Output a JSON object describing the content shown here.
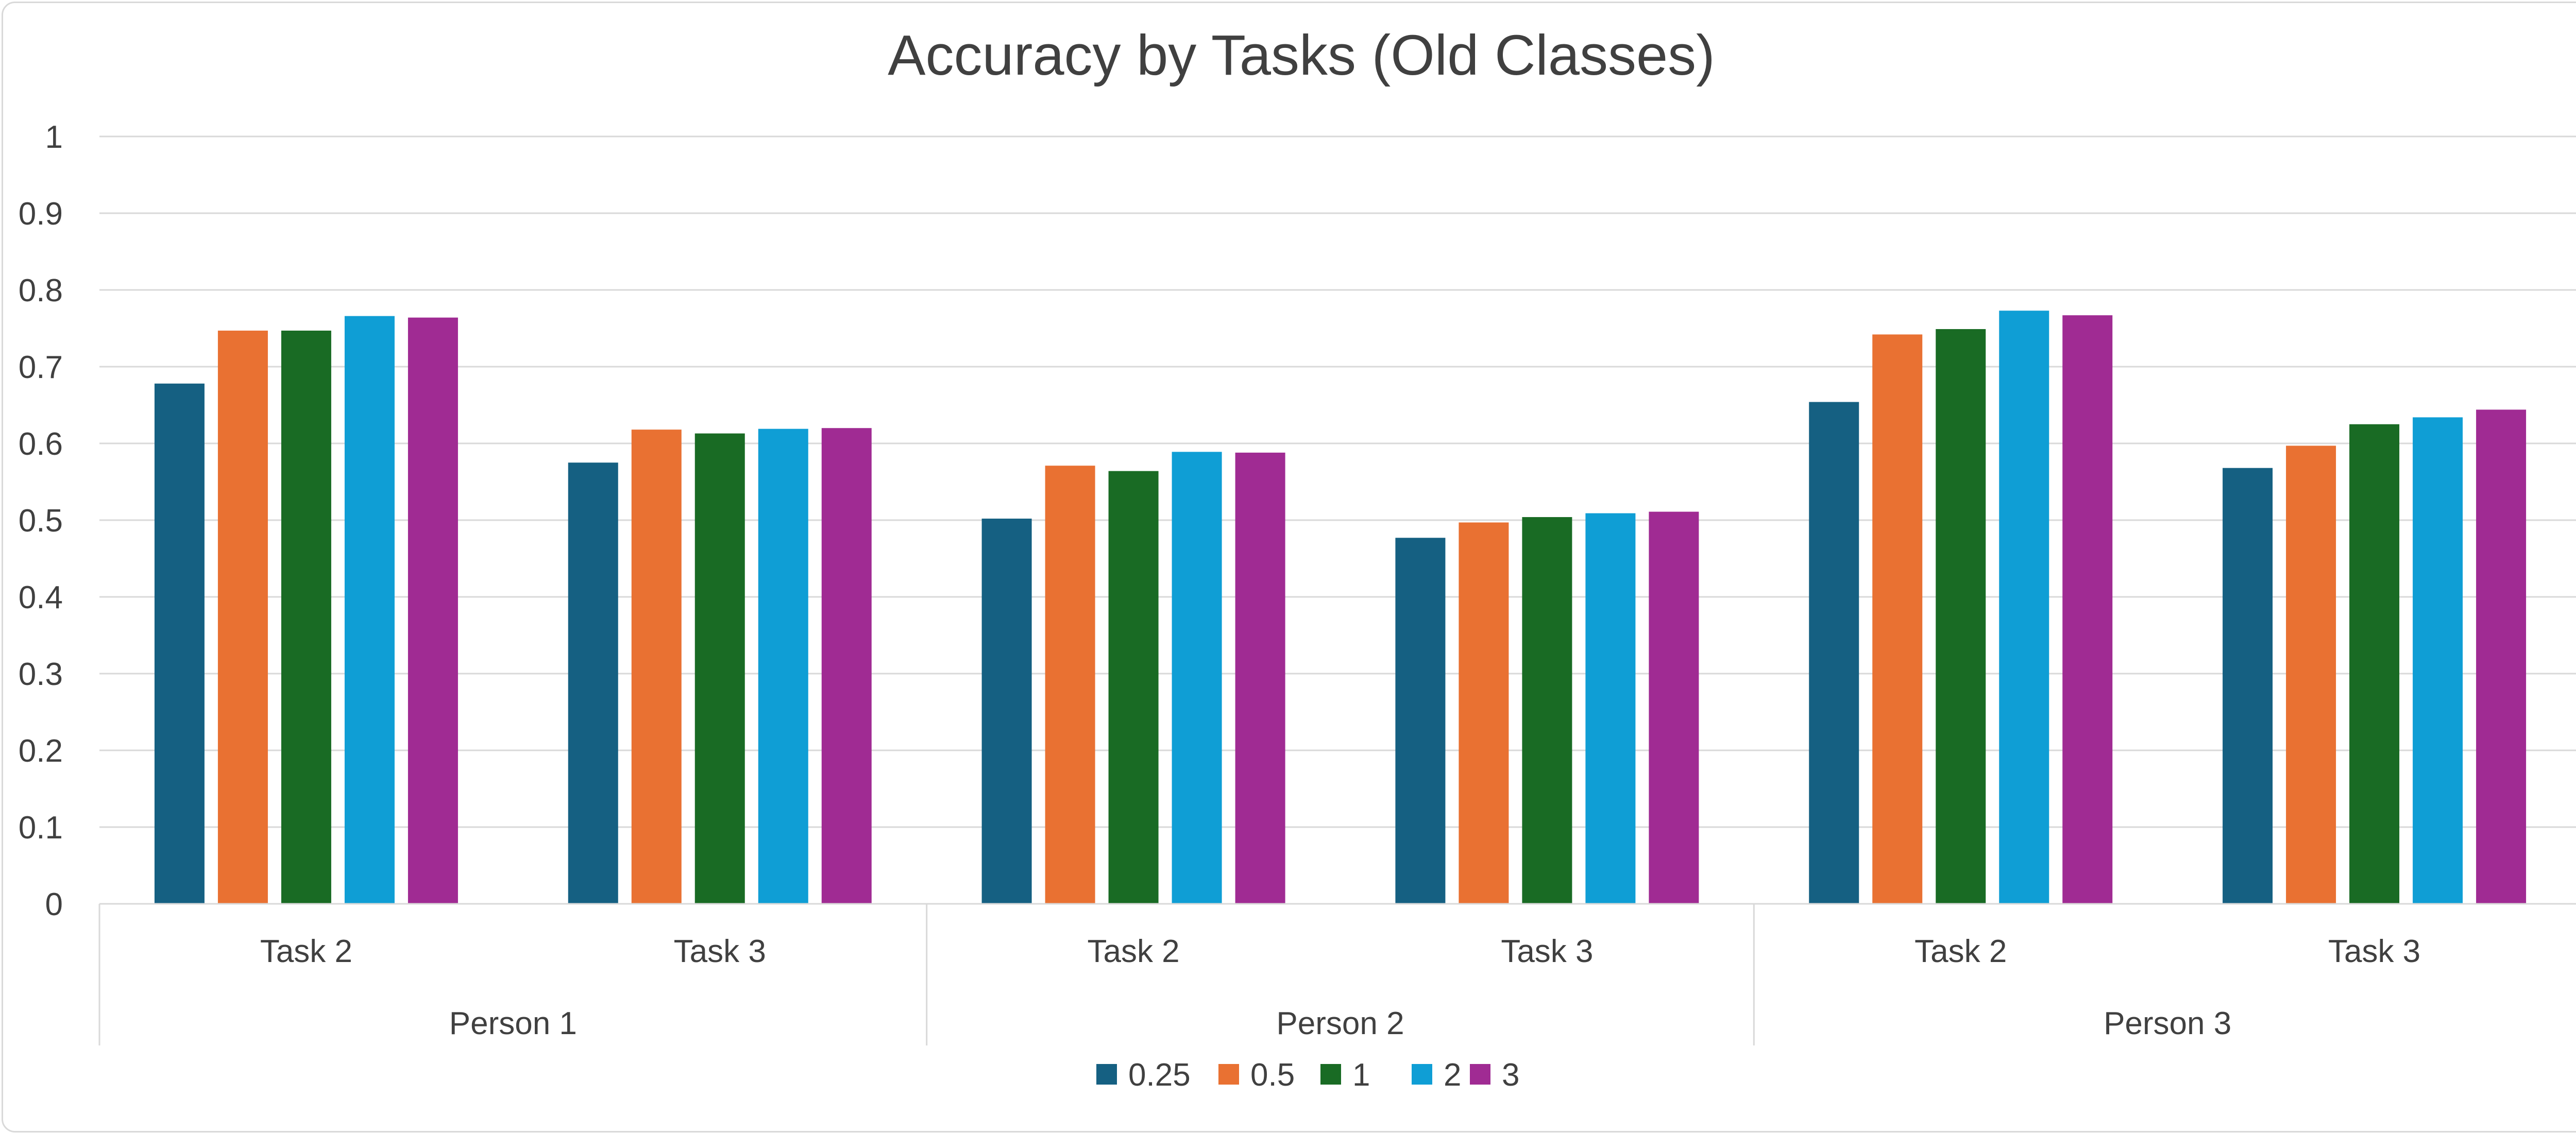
{
  "chart_data": {
    "type": "bar",
    "title": "Accuracy by Tasks (Old Classes)",
    "xlabel": "",
    "ylabel": "",
    "ylim": [
      0,
      1
    ],
    "yticks": [
      "0",
      "0.1",
      "0.2",
      "0.3",
      "0.4",
      "0.5",
      "0.6",
      "0.7",
      "0.8",
      "0.9",
      "1"
    ],
    "grid": true,
    "legend_position": "bottom",
    "groups": [
      "Person 1",
      "Person 2",
      "Person 3"
    ],
    "categories": [
      "Task 2",
      "Task 3",
      "Task 2",
      "Task 3",
      "Task 2",
      "Task 3"
    ],
    "category_group": [
      0,
      0,
      1,
      1,
      2,
      2
    ],
    "series": [
      {
        "name": "0.25",
        "color": "#156082",
        "values": [
          0.678,
          0.575,
          0.502,
          0.477,
          0.654,
          0.568
        ]
      },
      {
        "name": "0.5",
        "color": "#E97132",
        "values": [
          0.747,
          0.618,
          0.571,
          0.497,
          0.742,
          0.597
        ]
      },
      {
        "name": "1",
        "color": "#196B24",
        "values": [
          0.747,
          0.613,
          0.564,
          0.504,
          0.749,
          0.625
        ]
      },
      {
        "name": "2",
        "color": "#0F9ED5",
        "values": [
          0.766,
          0.619,
          0.589,
          0.509,
          0.773,
          0.634
        ]
      },
      {
        "name": "3",
        "color": "#A02B93",
        "values": [
          0.764,
          0.62,
          0.588,
          0.511,
          0.767,
          0.644
        ]
      }
    ]
  }
}
